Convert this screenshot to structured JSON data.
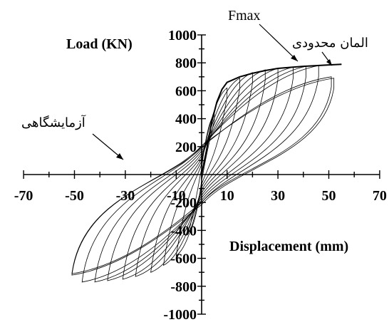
{
  "chart_data": {
    "type": "line",
    "title": "",
    "xlabel": "Displacement (mm)",
    "ylabel": "Load (KN)",
    "xlim": [
      -70,
      70
    ],
    "ylim": [
      -1000,
      1000
    ],
    "x_ticks": [
      -70,
      -50,
      -30,
      -10,
      10,
      30,
      50,
      70
    ],
    "y_ticks": [
      1000,
      800,
      600,
      400,
      200,
      -200,
      -400,
      -600,
      -800,
      -1000
    ],
    "grid": false,
    "legend": "none",
    "annotations": [
      {
        "text": "Fmax",
        "point": [
          38,
          790
        ]
      },
      {
        "text": "المان محدودی",
        "point": [
          52,
          790
        ]
      },
      {
        "text": "آزمایشگاهی",
        "point": [
          -30,
          170
        ]
      }
    ],
    "series": [
      {
        "role": "finite-element envelope",
        "x": [
          0,
          2,
          4,
          6,
          8,
          10,
          15,
          20,
          25,
          30,
          35,
          40,
          45,
          50,
          55
        ],
        "y": [
          0,
          180,
          380,
          520,
          610,
          660,
          700,
          725,
          745,
          760,
          768,
          775,
          780,
          785,
          790
        ]
      },
      {
        "role": "experimental hysteresis loops",
        "cycles": [
          {
            "amp_pos": 5,
            "amp_neg": -5,
            "peak_pos": 430,
            "peak_neg": -410
          },
          {
            "amp_pos": 10,
            "amp_neg": -10,
            "peak_pos": 620,
            "peak_neg": -580
          },
          {
            "amp_pos": 15,
            "amp_neg": -15,
            "peak_pos": 690,
            "peak_neg": -650
          },
          {
            "amp_pos": 20,
            "amp_neg": -20,
            "peak_pos": 730,
            "peak_neg": -700
          },
          {
            "amp_pos": 25,
            "amp_neg": -26,
            "peak_pos": 750,
            "peak_neg": -730
          },
          {
            "amp_pos": 30,
            "amp_neg": -31,
            "peak_pos": 760,
            "peak_neg": -750
          },
          {
            "amp_pos": 36,
            "amp_neg": -37,
            "peak_pos": 770,
            "peak_neg": -760
          },
          {
            "amp_pos": 41,
            "amp_neg": -42,
            "peak_pos": 775,
            "peak_neg": -770
          },
          {
            "amp_pos": 46,
            "amp_neg": -47,
            "peak_pos": 780,
            "peak_neg": -770
          },
          {
            "amp_pos": 51,
            "amp_neg": -51,
            "peak_pos": 700,
            "peak_neg": -710
          },
          {
            "amp_pos": 52,
            "amp_neg": -51,
            "peak_pos": 690,
            "peak_neg": -720
          }
        ]
      }
    ]
  }
}
